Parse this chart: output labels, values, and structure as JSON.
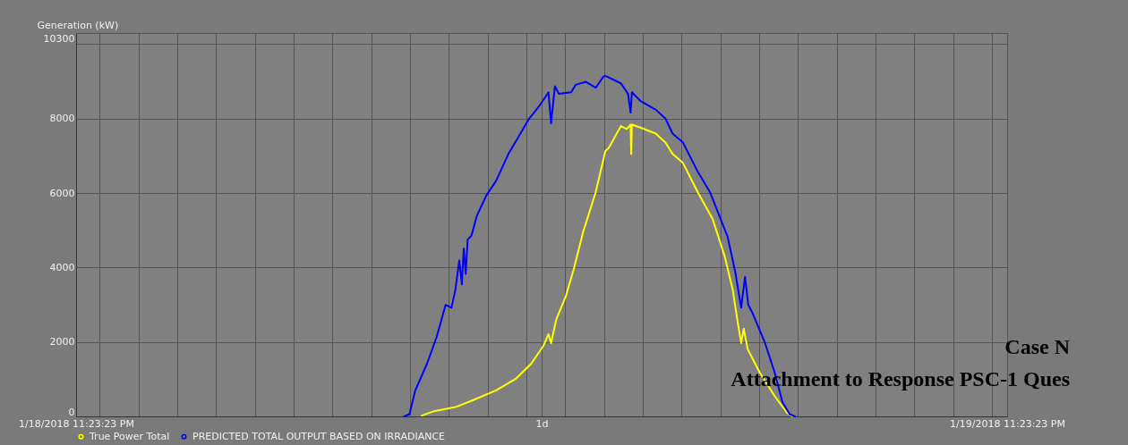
{
  "chart_data": {
    "type": "line",
    "ylabel": "Generation (kW)",
    "xlim": [
      "2018-01-18T23:23:23",
      "2018-01-19T23:23:23"
    ],
    "xticks": [
      {
        "value": "2018-01-18T23:23:23",
        "label": "1/18/2018 11:23:23 PM"
      },
      {
        "value": "2018-01-19T11:23:23",
        "label": "1d"
      },
      {
        "value": "2018-01-19T23:23:23",
        "label": "1/19/2018 11:23:23 PM"
      },
      {
        "value": "2018-01-19T00:00",
        "label": null
      },
      {
        "value": "2018-01-19T01:00",
        "label": null
      },
      {
        "value": "2018-01-19T02:00",
        "label": null
      },
      {
        "value": "2018-01-19T03:00",
        "label": null
      },
      {
        "value": "2018-01-19T04:00",
        "label": null
      },
      {
        "value": "2018-01-19T05:00",
        "label": null
      },
      {
        "value": "2018-01-19T06:00",
        "label": null
      },
      {
        "value": "2018-01-19T07:00",
        "label": null
      },
      {
        "value": "2018-01-19T08:00",
        "label": null
      },
      {
        "value": "2018-01-19T09:00",
        "label": null
      },
      {
        "value": "2018-01-19T10:00",
        "label": null
      },
      {
        "value": "2018-01-19T11:00",
        "label": null
      },
      {
        "value": "2018-01-19T12:00",
        "label": null
      },
      {
        "value": "2018-01-19T13:00",
        "label": null
      },
      {
        "value": "2018-01-19T14:00",
        "label": null
      },
      {
        "value": "2018-01-19T15:00",
        "label": null
      },
      {
        "value": "2018-01-19T16:00",
        "label": null
      },
      {
        "value": "2018-01-19T17:00",
        "label": null
      },
      {
        "value": "2018-01-19T18:00",
        "label": null
      },
      {
        "value": "2018-01-19T19:00",
        "label": null
      },
      {
        "value": "2018-01-19T20:00",
        "label": null
      },
      {
        "value": "2018-01-19T21:00",
        "label": null
      },
      {
        "value": "2018-01-19T22:00",
        "label": null
      },
      {
        "value": "2018-01-19T23:00",
        "label": null
      }
    ],
    "ylim": [
      0,
      10300
    ],
    "yticks": [
      0,
      2000,
      4000,
      6000,
      8000,
      {
        "value": 10000,
        "label": null
      },
      10300
    ],
    "grid": true,
    "legend": "bottom left",
    "line_style": "solid",
    "marker": "none",
    "annotations": [
      "Case N",
      "Attachment to Response PSC-1 Ques"
    ],
    "series": [
      {
        "name": "True Power Total",
        "color": "#ffff00",
        "x": [
          "2018-01-19T08:18",
          "2018-01-19T08:37",
          "2018-01-19T09:12",
          "2018-01-19T09:35",
          "2018-01-19T10:13",
          "2018-01-19T10:44",
          "2018-01-19T11:07",
          "2018-01-19T11:26",
          "2018-01-19T11:34",
          "2018-01-19T11:38",
          "2018-01-19T11:46",
          "2018-01-19T12:01",
          "2018-01-19T12:13",
          "2018-01-19T12:28",
          "2018-01-19T12:47",
          "2018-01-19T13:02",
          "2018-01-19T13:07",
          "2018-01-19T13:26",
          "2018-01-19T13:35",
          "2018-01-19T13:41",
          "2018-01-19T13:42",
          "2018-01-19T13:43",
          "2018-01-19T13:56",
          "2018-01-19T14:20",
          "2018-01-19T14:35",
          "2018-01-19T14:46",
          "2018-01-19T15:02",
          "2018-01-19T15:25",
          "2018-01-19T15:48",
          "2018-01-19T16:07",
          "2018-01-19T16:19",
          "2018-01-19T16:26",
          "2018-01-19T16:32",
          "2018-01-19T16:36",
          "2018-01-19T16:42",
          "2018-01-19T17:01",
          "2018-01-19T17:24",
          "2018-01-19T17:43",
          "2018-01-19T17:51"
        ],
        "values": [
          20,
          140,
          260,
          420,
          700,
          1020,
          1410,
          1890,
          2210,
          1970,
          2600,
          3240,
          3950,
          4980,
          6020,
          7130,
          7210,
          7800,
          7720,
          7840,
          7050,
          7840,
          7760,
          7600,
          7360,
          7050,
          6810,
          6020,
          5300,
          4270,
          3400,
          2600,
          1970,
          2360,
          1810,
          1170,
          540,
          100,
          0
        ]
      },
      {
        "name": "PREDICTED TOTAL OUTPUT BASED ON IRRADIANCE",
        "color": "#0000ff",
        "x": [
          "2018-01-19T07:51",
          "2018-01-19T07:59",
          "2018-01-19T08:08",
          "2018-01-19T08:26",
          "2018-01-19T08:41",
          "2018-01-19T08:55",
          "2018-01-19T09:04",
          "2018-01-19T09:10",
          "2018-01-19T09:16",
          "2018-01-19T09:20",
          "2018-01-19T09:23",
          "2018-01-19T09:26",
          "2018-01-19T09:29",
          "2018-01-19T09:35",
          "2018-01-19T09:43",
          "2018-01-19T09:58",
          "2018-01-19T10:13",
          "2018-01-19T10:32",
          "2018-01-19T10:48",
          "2018-01-19T11:04",
          "2018-01-19T11:19",
          "2018-01-19T11:34",
          "2018-01-19T11:38",
          "2018-01-19T11:44",
          "2018-01-19T11:50",
          "2018-01-19T12:09",
          "2018-01-19T12:16",
          "2018-01-19T12:32",
          "2018-01-19T12:47",
          "2018-01-19T12:59",
          "2018-01-19T13:02",
          "2018-01-19T13:26",
          "2018-01-19T13:37",
          "2018-01-19T13:41",
          "2018-01-19T13:43",
          "2018-01-19T13:56",
          "2018-01-19T14:20",
          "2018-01-19T14:35",
          "2018-01-19T14:46",
          "2018-01-19T15:02",
          "2018-01-19T15:25",
          "2018-01-19T15:44",
          "2018-01-19T16:11",
          "2018-01-19T16:23",
          "2018-01-19T16:32",
          "2018-01-19T16:38",
          "2018-01-19T16:43",
          "2018-01-19T16:50",
          "2018-01-19T17:09",
          "2018-01-19T17:24",
          "2018-01-19T17:36",
          "2018-01-19T17:47",
          "2018-01-19T17:55"
        ],
        "values": [
          0,
          60,
          700,
          1410,
          2130,
          3000,
          2920,
          3400,
          4190,
          3550,
          4510,
          3830,
          4750,
          4860,
          5380,
          5940,
          6330,
          7050,
          7520,
          8000,
          8320,
          8710,
          7880,
          8870,
          8670,
          8710,
          8910,
          8990,
          8830,
          9130,
          9150,
          8950,
          8670,
          8160,
          8710,
          8480,
          8240,
          8000,
          7600,
          7360,
          6570,
          6020,
          4830,
          3870,
          2920,
          3750,
          3000,
          2760,
          1970,
          1170,
          380,
          60,
          0
        ]
      }
    ]
  }
}
